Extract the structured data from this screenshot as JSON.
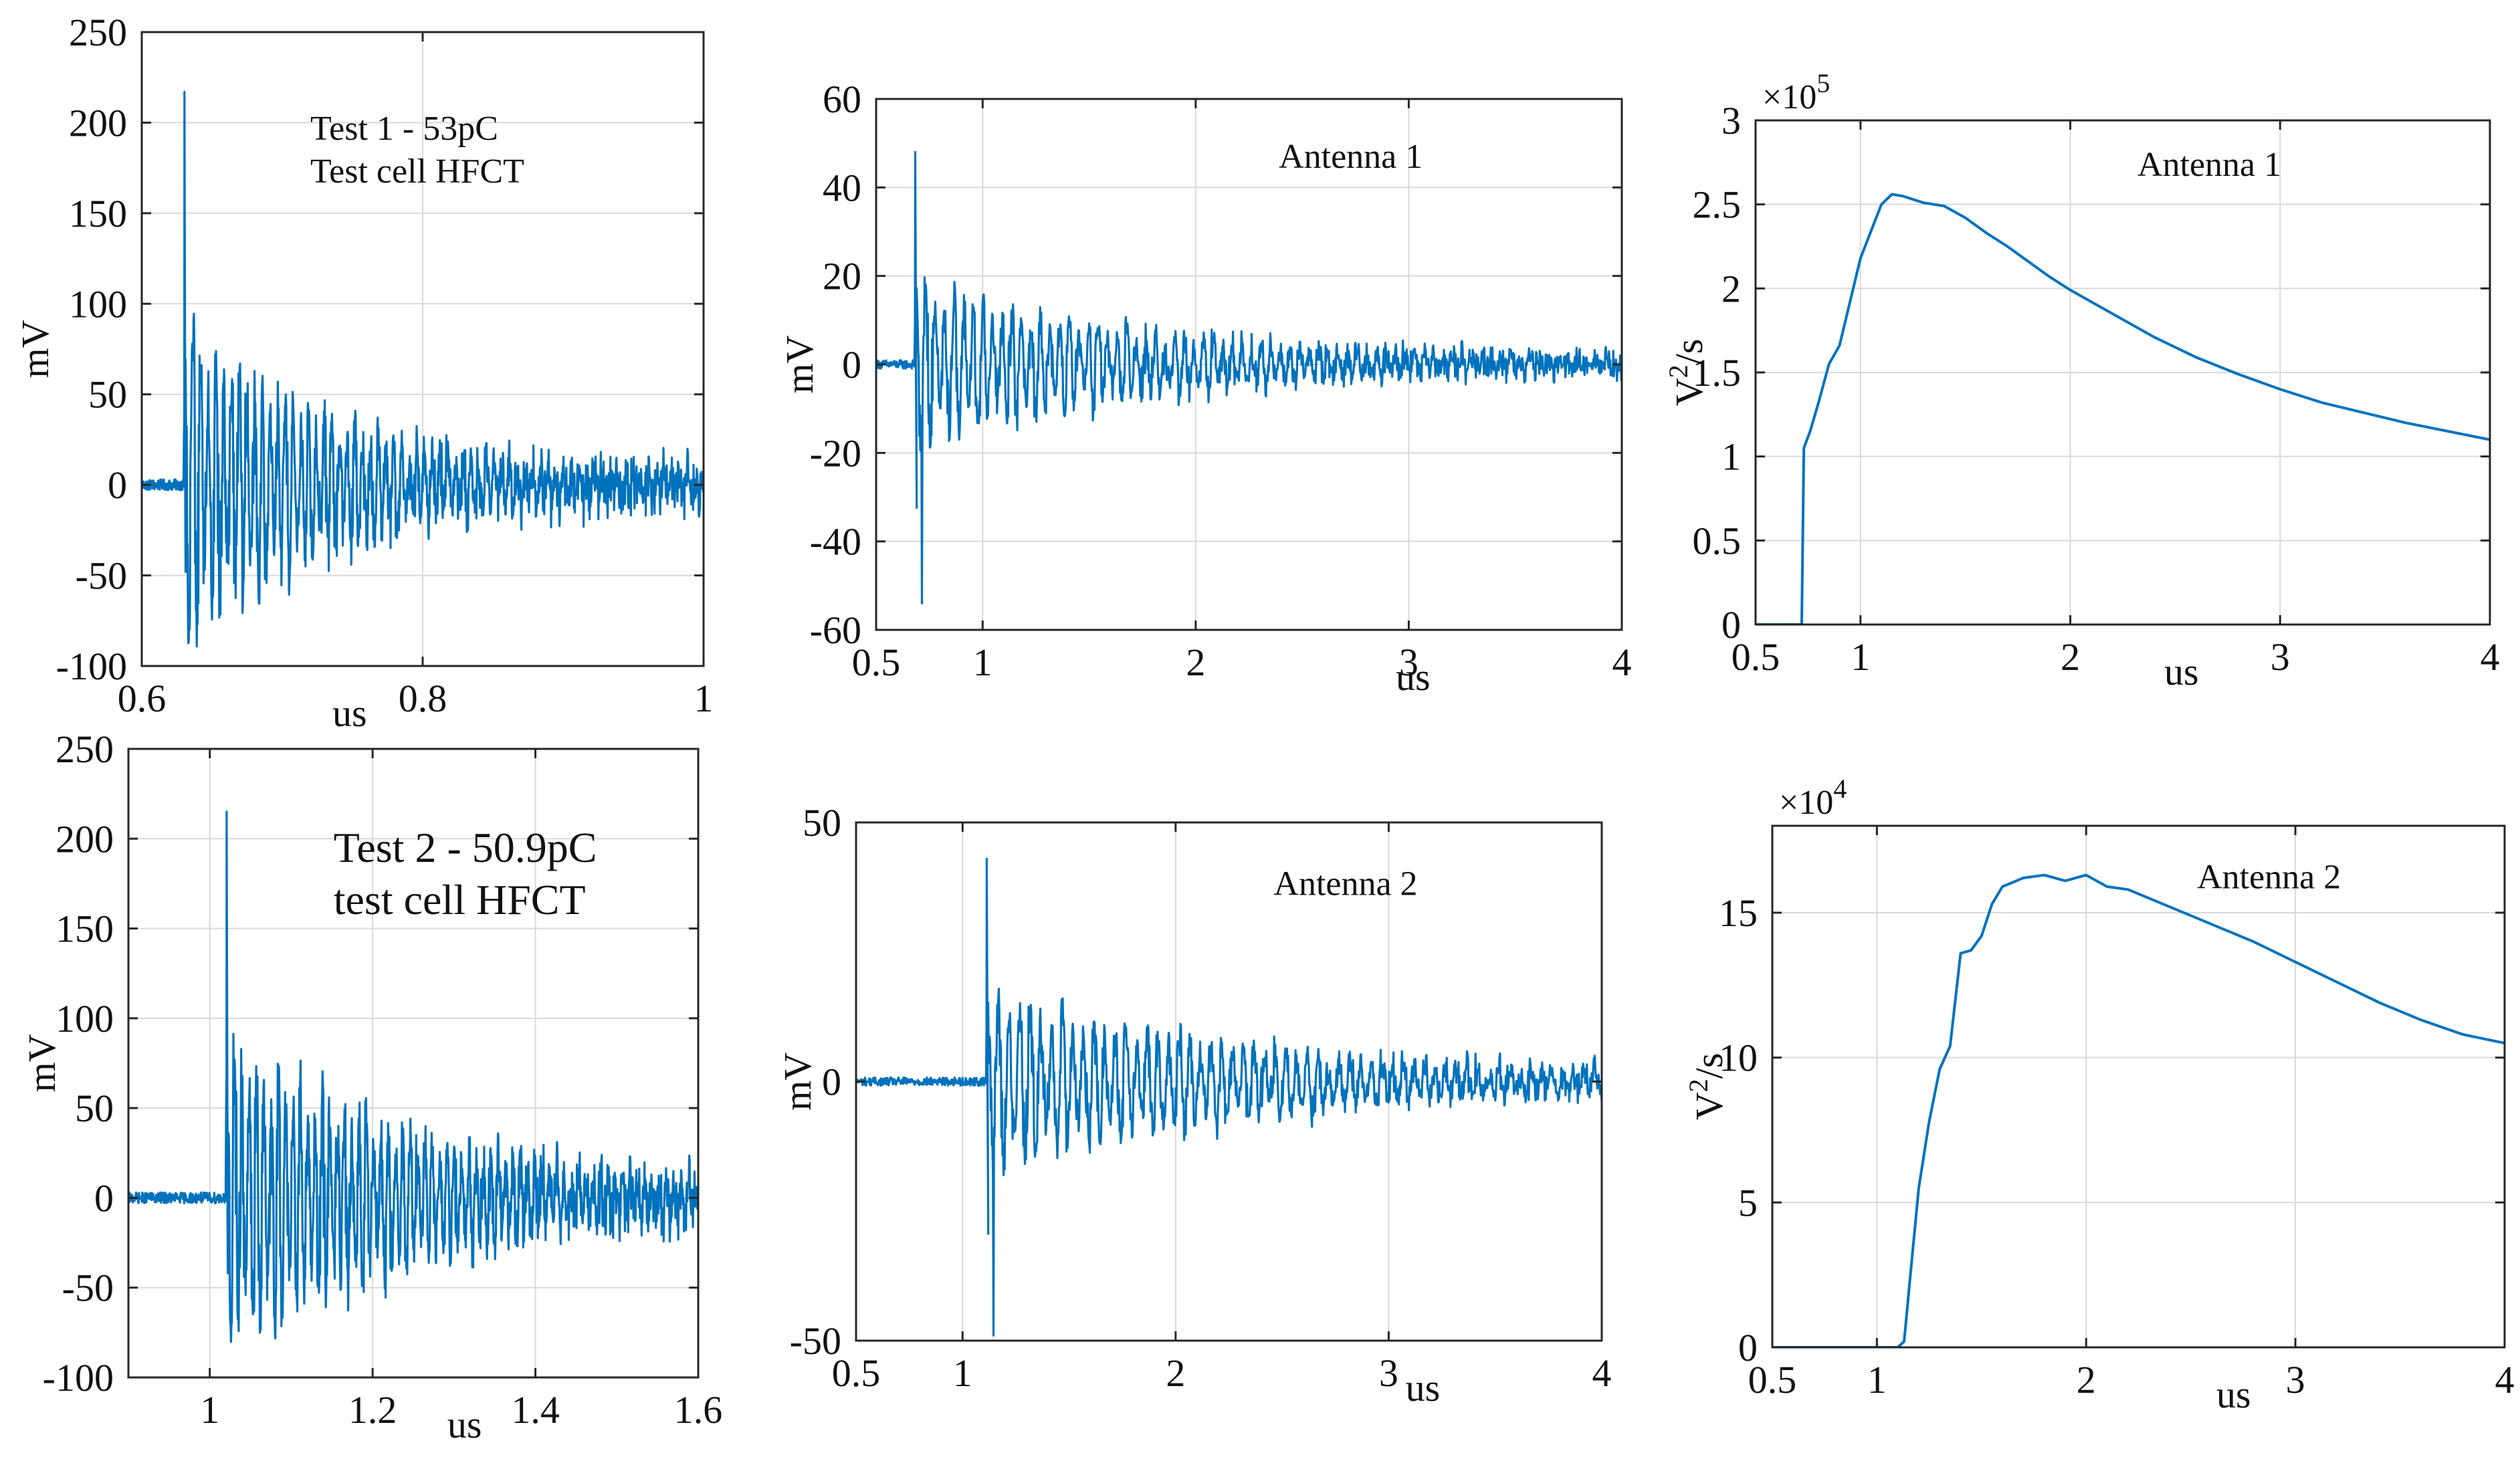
{
  "figure": {
    "colors": {
      "line": "#0072BD",
      "grid": "#d9d9d9",
      "axis": "#262626",
      "background": "#ffffff"
    }
  },
  "chart_data": [
    {
      "id": "p1",
      "type": "line",
      "title": "",
      "annotation_lines": [
        "Test 1 - 53pC",
        "Test cell HFCT"
      ],
      "xlabel": "us",
      "ylabel": "mV",
      "xlim": [
        0.6,
        1.0
      ],
      "ylim": [
        -100,
        250
      ],
      "xticks": [
        0.6,
        0.8,
        1.0
      ],
      "xtick_labels": [
        "0.6",
        "0.8",
        "1"
      ],
      "yticks": [
        -100,
        -50,
        0,
        50,
        100,
        150,
        200,
        250
      ],
      "ytick_labels": [
        "-100",
        "-50",
        "0",
        "50",
        "100",
        "150",
        "200",
        "250"
      ],
      "grid": true,
      "signal": "burst",
      "series": [
        {
          "name": "Test cell HFCT",
          "onset": 0.63,
          "peak": 217,
          "min": -80,
          "decay_time": 0.12,
          "cycle": 0.0055,
          "noise": 3
        }
      ]
    },
    {
      "id": "p2",
      "type": "line",
      "title": "",
      "annotation_lines": [
        "Antenna 1"
      ],
      "xlabel": "us",
      "ylabel": "mV",
      "xlim": [
        0.5,
        4
      ],
      "ylim": [
        -60,
        60
      ],
      "xticks": [
        0.5,
        1,
        2,
        3,
        4
      ],
      "xtick_labels": [
        "0.5",
        "1",
        "2",
        "3",
        "4"
      ],
      "yticks": [
        -60,
        -40,
        -20,
        0,
        20,
        40,
        60
      ],
      "ytick_labels": [
        "-60",
        "-40",
        "-20",
        "0",
        "20",
        "40",
        "60"
      ],
      "grid": true,
      "signal": "burst",
      "series": [
        {
          "name": "Antenna 1",
          "onset": 0.68,
          "peak": 48,
          "min": -54,
          "decay_time": 1.1,
          "cycle": 0.045,
          "noise": 1
        }
      ]
    },
    {
      "id": "p3",
      "type": "line",
      "title": "",
      "annotation_lines": [
        "Antenna 1"
      ],
      "xlabel": "us",
      "ylabel": "V²/s",
      "ylabel_base": "V",
      "ylabel_sup": "2",
      "ylabel_tail": "/s",
      "exponent": "×10",
      "exponent_power": "5",
      "xlim": [
        0.5,
        4
      ],
      "ylim": [
        0,
        3
      ],
      "xticks": [
        0.5,
        1,
        2,
        3,
        4
      ],
      "xtick_labels": [
        "0.5",
        "1",
        "2",
        "3",
        "4"
      ],
      "yticks": [
        0,
        0.5,
        1,
        1.5,
        2,
        2.5,
        3
      ],
      "ytick_labels": [
        "0",
        "0.5",
        "1",
        "1.5",
        "2",
        "2.5",
        "3"
      ],
      "grid": true,
      "signal": "energy",
      "series": [
        {
          "name": "Antenna 1",
          "x": [
            0.5,
            0.68,
            0.72,
            0.73,
            0.76,
            0.8,
            0.85,
            0.9,
            0.95,
            1.0,
            1.05,
            1.1,
            1.15,
            1.2,
            1.3,
            1.4,
            1.5,
            1.6,
            1.7,
            1.8,
            1.9,
            2.0,
            2.2,
            2.4,
            2.6,
            2.8,
            3.0,
            3.2,
            3.4,
            3.6,
            3.8,
            4.0
          ],
          "y": [
            0,
            0,
            0,
            1.05,
            1.15,
            1.32,
            1.55,
            1.66,
            1.92,
            2.18,
            2.34,
            2.5,
            2.56,
            2.55,
            2.51,
            2.49,
            2.42,
            2.33,
            2.25,
            2.16,
            2.07,
            1.99,
            1.85,
            1.71,
            1.59,
            1.49,
            1.4,
            1.32,
            1.26,
            1.2,
            1.15,
            1.1
          ]
        }
      ]
    },
    {
      "id": "p4",
      "type": "line",
      "title": "",
      "annotation_lines": [
        "Test 2 - 50.9pC",
        "test cell HFCT"
      ],
      "xlabel": "us",
      "ylabel": "mV",
      "xlim": [
        0.9,
        1.6
      ],
      "ylim": [
        -100,
        250
      ],
      "xticks": [
        1.0,
        1.2,
        1.4,
        1.6
      ],
      "xtick_labels": [
        "1",
        "1.2",
        "1.4",
        "1.6"
      ],
      "yticks": [
        -100,
        -50,
        0,
        50,
        100,
        150,
        200,
        250
      ],
      "ytick_labels": [
        "-100",
        "-50",
        "0",
        "50",
        "100",
        "150",
        "200",
        "250"
      ],
      "grid": true,
      "signal": "burst",
      "series": [
        {
          "name": "test cell HFCT",
          "onset": 1.02,
          "peak": 215,
          "min": -70,
          "decay_time": 0.25,
          "cycle": 0.009,
          "noise": 3
        }
      ]
    },
    {
      "id": "p5",
      "type": "line",
      "title": "",
      "annotation_lines": [
        "Antenna 2"
      ],
      "xlabel": "us",
      "ylabel": "mV",
      "xlim": [
        0.5,
        4
      ],
      "ylim": [
        -50,
        50
      ],
      "xticks": [
        0.5,
        1,
        2,
        3,
        4
      ],
      "xtick_labels": [
        "0.5",
        "1",
        "2",
        "3",
        "4"
      ],
      "yticks": [
        -50,
        0,
        50
      ],
      "ytick_labels": [
        "-50",
        "0",
        "50"
      ],
      "grid": true,
      "signal": "burst",
      "series": [
        {
          "name": "Antenna 2",
          "onset": 1.11,
          "peak": 43,
          "min": -49,
          "decay_time": 1.3,
          "cycle": 0.05,
          "noise": 0.8
        }
      ]
    },
    {
      "id": "p6",
      "type": "line",
      "title": "",
      "annotation_lines": [
        "Antenna 2"
      ],
      "xlabel": "us",
      "ylabel": "V²/s",
      "ylabel_base": "V",
      "ylabel_sup": "2",
      "ylabel_tail": "/s",
      "exponent": "×10",
      "exponent_power": "4",
      "xlim": [
        0.5,
        4
      ],
      "ylim": [
        0,
        18
      ],
      "xticks": [
        0.5,
        1,
        2,
        3,
        4
      ],
      "xtick_labels": [
        "0.5",
        "1",
        "2",
        "3",
        "4"
      ],
      "yticks": [
        0,
        5,
        10,
        15
      ],
      "ytick_labels": [
        "0",
        "5",
        "10",
        "15"
      ],
      "grid": true,
      "signal": "energy",
      "series": [
        {
          "name": "Antenna 2",
          "x": [
            0.5,
            1.1,
            1.13,
            1.16,
            1.2,
            1.25,
            1.3,
            1.35,
            1.4,
            1.45,
            1.5,
            1.55,
            1.6,
            1.7,
            1.8,
            1.9,
            2.0,
            2.1,
            2.2,
            2.4,
            2.6,
            2.8,
            3.0,
            3.2,
            3.4,
            3.6,
            3.8,
            4.0
          ],
          "y": [
            0,
            0,
            0.2,
            2.5,
            5.5,
            7.8,
            9.6,
            10.4,
            13.6,
            13.7,
            14.2,
            15.3,
            15.9,
            16.2,
            16.3,
            16.1,
            16.3,
            15.9,
            15.8,
            15.2,
            14.6,
            14.0,
            13.3,
            12.6,
            11.9,
            11.3,
            10.8,
            10.5
          ]
        }
      ]
    }
  ]
}
